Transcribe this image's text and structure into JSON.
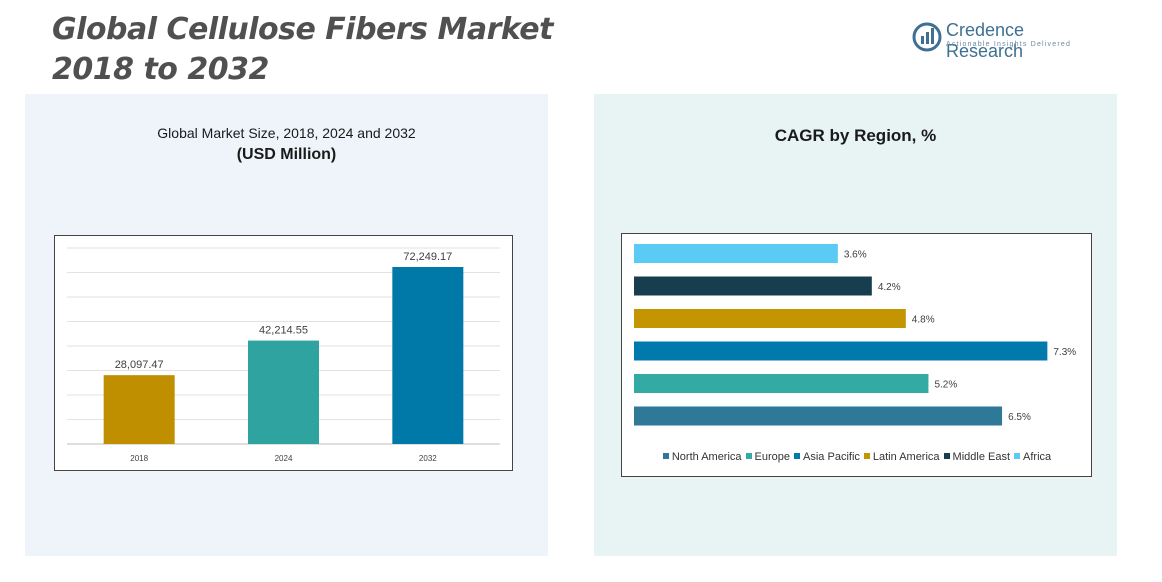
{
  "title_line1": "Global Cellulose Fibers Market",
  "title_line2": "2018 to 2032",
  "brand": {
    "name": "Credence Research",
    "tagline": "Actionable Insights Delivered"
  },
  "left_panel": {
    "title": "Global Market Size, 2018, 2024 and 2032",
    "subtitle": "(USD Million)"
  },
  "right_panel": {
    "title": "CAGR by Region, %"
  },
  "chart_data": [
    {
      "type": "bar",
      "title": "Global Market Size, 2018, 2024 and 2032",
      "subtitle": "(USD Million)",
      "categories": [
        "2018",
        "2024",
        "2032"
      ],
      "values": [
        28097.47,
        42214.55,
        72249.17
      ],
      "value_labels": [
        "28,097.47",
        "42,214.55",
        "72,249.17"
      ],
      "colors": [
        "#bf8f00",
        "#2ea3a0",
        "#0079a8"
      ],
      "ylim": [
        0,
        80000
      ],
      "grid": true
    },
    {
      "type": "bar",
      "orientation": "horizontal",
      "title": "CAGR by Region, %",
      "categories": [
        "North America",
        "Europe",
        "Asia Pacific",
        "Latin America",
        "Middle East",
        "Africa"
      ],
      "values": [
        6.5,
        5.2,
        7.3,
        4.8,
        4.2,
        3.6
      ],
      "value_labels": [
        "6.5%",
        "5.2%",
        "7.3%",
        "4.8%",
        "4.2%",
        "3.6%"
      ],
      "colors": [
        "#2e7898",
        "#33aaa4",
        "#0079ac",
        "#c39500",
        "#173e4e",
        "#5bcaf4"
      ],
      "xlim": [
        0,
        8
      ],
      "legend": "bottom"
    }
  ]
}
